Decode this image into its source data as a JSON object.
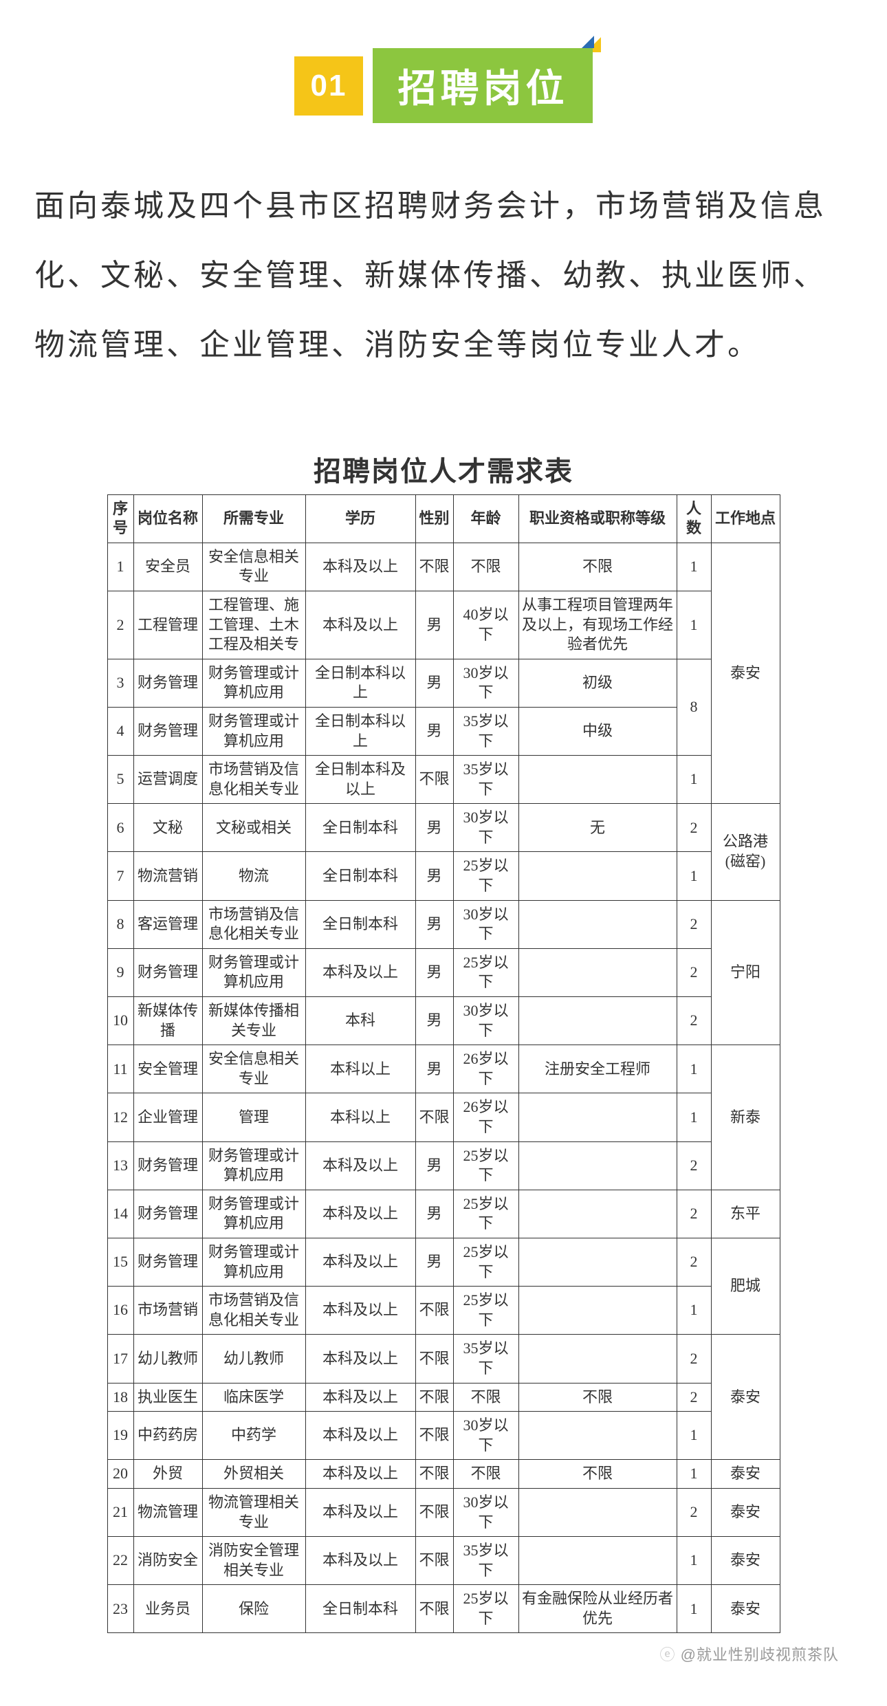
{
  "heading": {
    "number": "01",
    "title": "招聘岗位"
  },
  "intro": "面向泰城及四个县市区招聘财务会计，市场营销及信息化、文秘、安全管理、新媒体传播、幼教、执业医师、物流管理、企业管理、消防安全等岗位专业人才。",
  "table_title": "招聘岗位人才需求表",
  "columns": [
    "序号",
    "岗位名称",
    "所需专业",
    "学历",
    "性别",
    "年龄",
    "职业资格或职称等级",
    "人数",
    "工作地点"
  ],
  "rows": [
    {
      "seq": "1",
      "name": "安全员",
      "major": "安全信息相关专业",
      "edu": "本科及以上",
      "gender": "不限",
      "age": "不限",
      "qual": "不限",
      "count": "1",
      "loc_ref": "loc_taian1"
    },
    {
      "seq": "2",
      "name": "工程管理",
      "major": "工程管理、施工管理、土木工程及相关专",
      "edu": "本科及以上",
      "gender": "男",
      "age": "40岁以下",
      "qual": "从事工程项目管理两年及以上，有现场工作经验者优先",
      "count": "1",
      "loc_ref": "loc_taian1"
    },
    {
      "seq": "3",
      "name": "财务管理",
      "major": "财务管理或计算机应用",
      "edu": "全日制本科以上",
      "gender": "男",
      "age": "30岁以下",
      "qual": "初级",
      "count_ref": "count_8",
      "loc_ref": "loc_taian1"
    },
    {
      "seq": "4",
      "name": "财务管理",
      "major": "财务管理或计算机应用",
      "edu": "全日制本科以上",
      "gender": "男",
      "age": "35岁以下",
      "qual": "中级",
      "count_ref": "count_8",
      "loc_ref": "loc_taian1"
    },
    {
      "seq": "5",
      "name": "运营调度",
      "major": "市场营销及信息化相关专业",
      "edu": "全日制本科及以上",
      "gender": "不限",
      "age": "35岁以下",
      "qual": "",
      "count": "1",
      "loc_ref": "loc_taian1"
    },
    {
      "seq": "6",
      "name": "文秘",
      "major": "文秘或相关",
      "edu": "全日制本科",
      "gender": "男",
      "age": "30岁以下",
      "qual": "无",
      "count": "2",
      "loc_ref": "loc_gonglu"
    },
    {
      "seq": "7",
      "name": "物流营销",
      "major": "物流",
      "edu": "全日制本科",
      "gender": "男",
      "age": "25岁以下",
      "qual": "",
      "count": "1",
      "loc_ref": "loc_gonglu"
    },
    {
      "seq": "8",
      "name": "客运管理",
      "major": "市场营销及信息化相关专业",
      "edu": "全日制本科",
      "gender": "男",
      "age": "30岁以下",
      "qual": "",
      "count": "2",
      "loc_ref": "loc_ningyang"
    },
    {
      "seq": "9",
      "name": "财务管理",
      "major": "财务管理或计算机应用",
      "edu": "本科及以上",
      "gender": "男",
      "age": "25岁以下",
      "qual": "",
      "count": "2",
      "loc_ref": "loc_ningyang"
    },
    {
      "seq": "10",
      "name": "新媒体传播",
      "major": "新媒体传播相关专业",
      "edu": "本科",
      "gender": "男",
      "age": "30岁以下",
      "qual": "",
      "count": "2",
      "loc_ref": "loc_ningyang"
    },
    {
      "seq": "11",
      "name": "安全管理",
      "major": "安全信息相关专业",
      "edu": "本科以上",
      "gender": "男",
      "age": "26岁以下",
      "qual": "注册安全工程师",
      "count": "1",
      "loc_ref": "loc_xintai"
    },
    {
      "seq": "12",
      "name": "企业管理",
      "major": "管理",
      "edu": "本科以上",
      "gender": "不限",
      "age": "26岁以下",
      "qual": "",
      "count": "1",
      "loc_ref": "loc_xintai"
    },
    {
      "seq": "13",
      "name": "财务管理",
      "major": "财务管理或计算机应用",
      "edu": "本科及以上",
      "gender": "男",
      "age": "25岁以下",
      "qual": "",
      "count": "2",
      "loc_ref": "loc_xintai"
    },
    {
      "seq": "14",
      "name": "财务管理",
      "major": "财务管理或计算机应用",
      "edu": "本科及以上",
      "gender": "男",
      "age": "25岁以下",
      "qual": "",
      "count": "2",
      "loc": "东平"
    },
    {
      "seq": "15",
      "name": "财务管理",
      "major": "财务管理或计算机应用",
      "edu": "本科及以上",
      "gender": "男",
      "age": "25岁以下",
      "qual": "",
      "count": "2",
      "loc_ref": "loc_feicheng"
    },
    {
      "seq": "16",
      "name": "市场营销",
      "major": "市场营销及信息化相关专业",
      "edu": "本科及以上",
      "gender": "不限",
      "age": "25岁以下",
      "qual": "",
      "count": "1",
      "loc_ref": "loc_feicheng"
    },
    {
      "seq": "17",
      "name": "幼儿教师",
      "major": "幼儿教师",
      "edu": "本科及以上",
      "gender": "不限",
      "age": "35岁以下",
      "qual": "",
      "count": "2",
      "loc_ref": "loc_taian3"
    },
    {
      "seq": "18",
      "name": "执业医生",
      "major": "临床医学",
      "edu": "本科及以上",
      "gender": "不限",
      "age": "不限",
      "qual": "不限",
      "count": "2",
      "loc_ref": "loc_taian3"
    },
    {
      "seq": "19",
      "name": "中药药房",
      "major": "中药学",
      "edu": "本科及以上",
      "gender": "不限",
      "age": "30岁以下",
      "qual": "",
      "count": "1",
      "loc_ref": "loc_taian3"
    },
    {
      "seq": "20",
      "name": "外贸",
      "major": "外贸相关",
      "edu": "本科及以上",
      "gender": "不限",
      "age": "不限",
      "qual": "不限",
      "count": "1",
      "loc": "泰安"
    },
    {
      "seq": "21",
      "name": "物流管理",
      "major": "物流管理相关专业",
      "edu": "本科及以上",
      "gender": "不限",
      "age": "30岁以下",
      "qual": "",
      "count": "2",
      "loc": "泰安"
    },
    {
      "seq": "22",
      "name": "消防安全",
      "major": "消防安全管理相关专业",
      "edu": "本科及以上",
      "gender": "不限",
      "age": "35岁以下",
      "qual": "",
      "count": "1",
      "loc": "泰安"
    },
    {
      "seq": "23",
      "name": "业务员",
      "major": "保险",
      "edu": "全日制本科",
      "gender": "不限",
      "age": "25岁以下",
      "qual": "有金融保险从业经历者优先",
      "count": "1",
      "loc": "泰安"
    }
  ],
  "merged_counts": {
    "count_8": "8"
  },
  "merged_locs": {
    "loc_taian1": "泰安",
    "loc_gonglu": "公路港\n(磁窑)",
    "loc_ningyang": "宁阳",
    "loc_xintai": "新泰",
    "loc_feicheng": "肥城",
    "loc_taian3": "泰安"
  },
  "watermark": "@就业性别歧视煎茶队",
  "colors": {
    "yellow": "#f5c518",
    "green": "#8cc63f",
    "blue": "#2b6db3",
    "text": "#333333",
    "border": "#333333"
  }
}
